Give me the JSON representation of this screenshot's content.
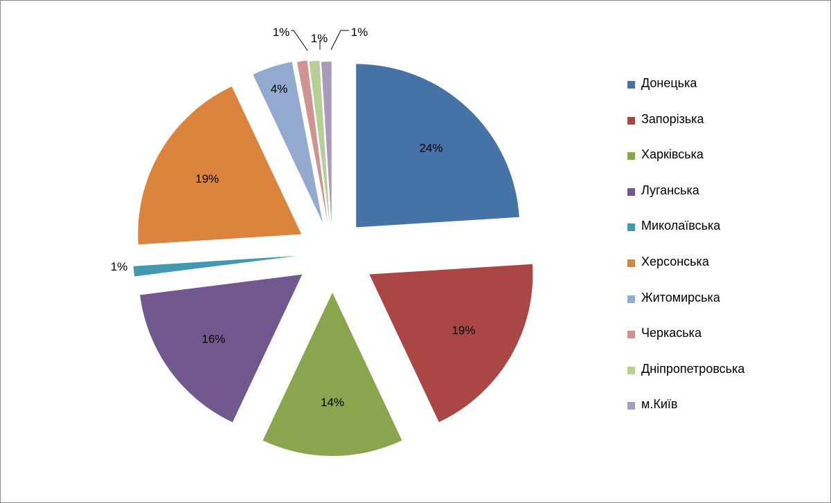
{
  "chart_data": {
    "type": "pie",
    "title": "",
    "slices": [
      {
        "label": "Донецька",
        "value": 24,
        "display": "24%",
        "color": "#4572A7"
      },
      {
        "label": "Запорізька",
        "value": 19,
        "display": "19%",
        "color": "#AA4643"
      },
      {
        "label": "Харківська",
        "value": 14,
        "display": "14%",
        "color": "#89A54E"
      },
      {
        "label": "Луганська",
        "value": 16,
        "display": "16%",
        "color": "#71588F"
      },
      {
        "label": "Миколаївська",
        "value": 1,
        "display": "1%",
        "color": "#4198AF"
      },
      {
        "label": "Херсонська",
        "value": 19,
        "display": "19%",
        "color": "#DB843D"
      },
      {
        "label": "Житомирська",
        "value": 4,
        "display": "4%",
        "color": "#93A9CF"
      },
      {
        "label": "Черкаська",
        "value": 1,
        "display": "1%",
        "color": "#D19392"
      },
      {
        "label": "Дніпропетровська",
        "value": 1,
        "display": "1%",
        "color": "#B9CD96"
      },
      {
        "label": "м.Київ",
        "value": 1,
        "display": "1%",
        "color": "#A99BBD"
      }
    ],
    "legend_position": "right"
  }
}
